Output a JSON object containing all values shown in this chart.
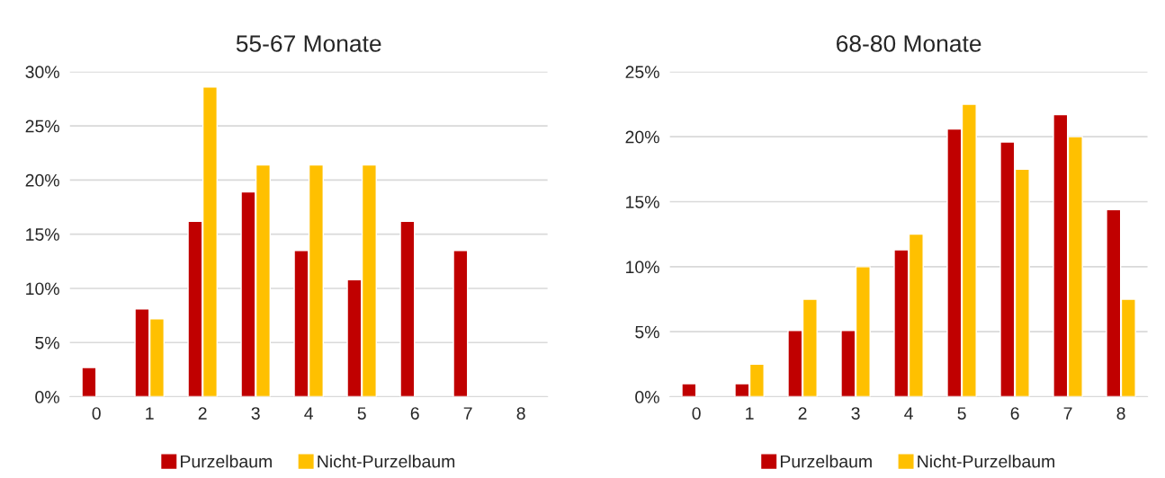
{
  "chart_data": [
    {
      "type": "bar",
      "title": "55-67 Monate",
      "categories": [
        "0",
        "1",
        "2",
        "3",
        "4",
        "5",
        "6",
        "7",
        "8"
      ],
      "ylim": [
        0,
        30
      ],
      "yticks": [
        {
          "value": 0,
          "label": "0%"
        },
        {
          "value": 5,
          "label": "5%"
        },
        {
          "value": 10,
          "label": "10%"
        },
        {
          "value": 15,
          "label": "15%"
        },
        {
          "value": 20,
          "label": "20%"
        },
        {
          "value": 25,
          "label": "25%"
        },
        {
          "value": 30,
          "label": "30%"
        }
      ],
      "grid": "y",
      "legend": "bottom",
      "series": [
        {
          "name": "Purzelbaum",
          "color": "#c00000",
          "values": [
            2.7,
            8.1,
            16.2,
            18.9,
            13.5,
            10.8,
            16.2,
            13.5,
            null
          ]
        },
        {
          "name": "Nicht-Purzelbaum",
          "color": "#ffc000",
          "values": [
            null,
            7.2,
            28.6,
            21.4,
            21.4,
            21.4,
            null,
            null,
            null
          ]
        }
      ]
    },
    {
      "type": "bar",
      "title": "68-80 Monate",
      "categories": [
        "0",
        "1",
        "2",
        "3",
        "4",
        "5",
        "6",
        "7",
        "8"
      ],
      "ylim": [
        0,
        25
      ],
      "yticks": [
        {
          "value": 0,
          "label": "0%"
        },
        {
          "value": 5,
          "label": "5%"
        },
        {
          "value": 10,
          "label": "10%"
        },
        {
          "value": 15,
          "label": "15%"
        },
        {
          "value": 20,
          "label": "20%"
        },
        {
          "value": 25,
          "label": "25%"
        }
      ],
      "grid": "y",
      "legend": "bottom",
      "series": [
        {
          "name": "Purzelbaum",
          "color": "#c00000",
          "values": [
            1.0,
            1.0,
            5.1,
            5.1,
            11.3,
            20.6,
            19.6,
            21.7,
            14.4
          ]
        },
        {
          "name": "Nicht-Purzelbaum",
          "color": "#ffc000",
          "values": [
            null,
            2.5,
            7.5,
            10.0,
            12.5,
            22.5,
            17.5,
            20.0,
            7.5
          ]
        }
      ]
    }
  ]
}
